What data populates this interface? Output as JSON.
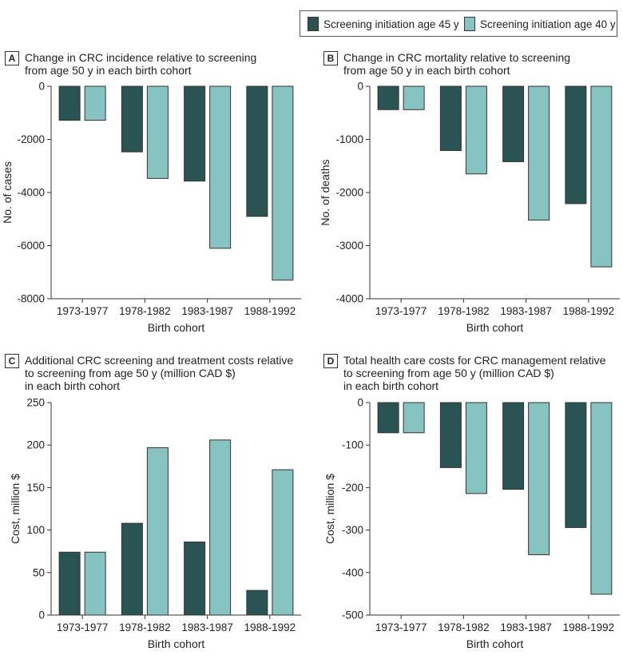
{
  "legend": {
    "items": [
      {
        "label": "Screening initiation age 45 y",
        "color": "#2a5354"
      },
      {
        "label": "Screening initiation age 40 y",
        "color": "#87c3c1"
      }
    ]
  },
  "panels": [
    {
      "letter": "A",
      "title_lines": [
        "Change in CRC incidence relative to screening",
        "from age 50 y in each birth cohort"
      ]
    },
    {
      "letter": "B",
      "title_lines": [
        "Change in CRC mortality relative to screening",
        "from age 50 y in each birth cohort"
      ]
    },
    {
      "letter": "C",
      "title_lines": [
        "Additional CRC screening and treatment costs relative",
        "to screening from age 50 y (million CAD $)",
        "in each birth cohort"
      ]
    },
    {
      "letter": "D",
      "title_lines": [
        "Total health care costs for CRC management relative",
        "to screening from age 50 y (million CAD $)",
        "in each birth cohort"
      ]
    }
  ],
  "chart_data": [
    {
      "type": "bar",
      "title": "Change in CRC incidence relative to screening from age 50 y in each birth cohort",
      "categories": [
        "1973-1977",
        "1978-1982",
        "1983-1987",
        "1988-1992"
      ],
      "series": [
        {
          "name": "Screening initiation age 45 y",
          "values": [
            -1280,
            -2470,
            -3570,
            -4900
          ]
        },
        {
          "name": "Screening initiation age 40 y",
          "values": [
            -1280,
            -3470,
            -6100,
            -7300
          ]
        }
      ],
      "xlabel": "Birth cohort",
      "ylabel": "No. of cases",
      "ylim": [
        -8000,
        0
      ],
      "yticks": [
        0,
        -2000,
        -4000,
        -6000,
        -8000
      ],
      "ytick_labels": [
        "0",
        "-2000",
        "-4000",
        "-6000",
        "-8000"
      ]
    },
    {
      "type": "bar",
      "title": "Change in CRC mortality relative to screening from age 50 y in each birth cohort",
      "categories": [
        "1973-1977",
        "1978-1982",
        "1983-1987",
        "1988-1992"
      ],
      "series": [
        {
          "name": "Screening initiation age 45 y",
          "values": [
            -440,
            -1210,
            -1420,
            -2210
          ]
        },
        {
          "name": "Screening initiation age 40 y",
          "values": [
            -440,
            -1650,
            -2520,
            -3400
          ]
        }
      ],
      "xlabel": "Birth cohort",
      "ylabel": "No. of deaths",
      "ylim": [
        -4000,
        0
      ],
      "yticks": [
        0,
        -1000,
        -2000,
        -3000,
        -4000
      ],
      "ytick_labels": [
        "0",
        "-1000",
        "-2000",
        "-3000",
        "-4000"
      ]
    },
    {
      "type": "bar",
      "title": "Additional CRC screening and treatment costs relative to screening from age 50 y (million CAD $) in each birth cohort",
      "categories": [
        "1973-1977",
        "1978-1982",
        "1983-1987",
        "1988-1992"
      ],
      "series": [
        {
          "name": "Screening initiation age 45 y",
          "values": [
            74,
            108,
            86,
            29
          ]
        },
        {
          "name": "Screening initiation age 40 y",
          "values": [
            74,
            197,
            206,
            171
          ]
        }
      ],
      "xlabel": "Birth cohort",
      "ylabel": "Cost, million $",
      "ylim": [
        0,
        250
      ],
      "yticks": [
        0,
        50,
        100,
        150,
        200,
        250
      ],
      "ytick_labels": [
        "0",
        "50",
        "100",
        "150",
        "200",
        "250"
      ]
    },
    {
      "type": "bar",
      "title": "Total health care costs for CRC management relative to screening from age 50 y (million CAD $) in each birth cohort",
      "categories": [
        "1973-1977",
        "1978-1982",
        "1983-1987",
        "1988-1992"
      ],
      "series": [
        {
          "name": "Screening initiation age 45 y",
          "values": [
            -71,
            -153,
            -204,
            -294
          ]
        },
        {
          "name": "Screening initiation age 40 y",
          "values": [
            -71,
            -214,
            -358,
            -451
          ]
        }
      ],
      "xlabel": "Birth cohort",
      "ylabel": "Cost, million $",
      "ylim": [
        -500,
        0
      ],
      "yticks": [
        0,
        -100,
        -200,
        -300,
        -400,
        -500
      ],
      "ytick_labels": [
        "0",
        "-100",
        "-200",
        "-300",
        "-400",
        "-500"
      ]
    }
  ]
}
